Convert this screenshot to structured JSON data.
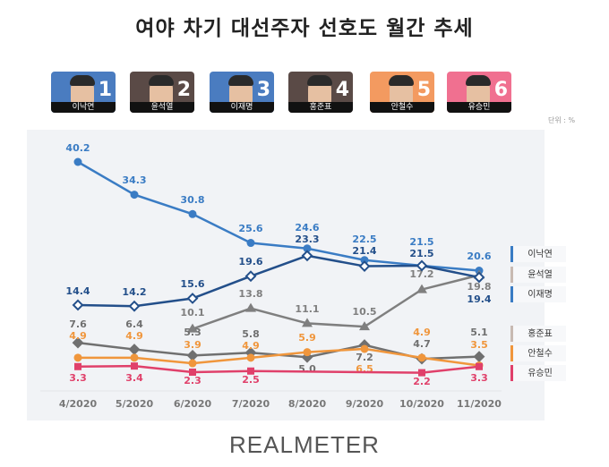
{
  "title": "여야 차기 대선주자 선호도 월간 추세",
  "unit": "단위 : %",
  "footer": "REALMETER",
  "candidates": [
    {
      "num": "1",
      "name": "이낙연",
      "bg": "#4a7cc0"
    },
    {
      "num": "2",
      "name": "윤석열",
      "bg": "#5a4a46"
    },
    {
      "num": "3",
      "name": "이재명",
      "bg": "#4a7cc0"
    },
    {
      "num": "4",
      "name": "홍준표",
      "bg": "#5a4a46"
    },
    {
      "num": "5",
      "name": "안철수",
      "bg": "#f39a60"
    },
    {
      "num": "6",
      "name": "유승민",
      "bg": "#f07090"
    }
  ],
  "chart_data": {
    "type": "line",
    "categories": [
      "4/2020",
      "5/2020",
      "6/2020",
      "7/2020",
      "8/2020",
      "9/2020",
      "10/2020",
      "11/2020"
    ],
    "series": [
      {
        "name": "이낙연",
        "color": "#3a7cc4",
        "legend_color": "#3a7cc4",
        "marker": "circle",
        "values": [
          40.2,
          34.3,
          30.8,
          25.6,
          24.6,
          22.5,
          21.5,
          20.6
        ]
      },
      {
        "name": "윤석열",
        "color": "#7f7f7f",
        "legend_color": "#c8bab2",
        "marker": "triangle",
        "values": [
          null,
          null,
          10.1,
          13.8,
          11.1,
          10.5,
          17.2,
          19.8
        ]
      },
      {
        "name": "이재명",
        "color": "#234f8a",
        "legend_color": "#3a7cc4",
        "marker": "hollow-diamond",
        "values": [
          14.4,
          14.2,
          15.6,
          19.6,
          23.3,
          21.4,
          21.5,
          19.4
        ]
      },
      {
        "name": "홍준표",
        "color": "#707070",
        "legend_color": "#c8bab2",
        "marker": "diamond",
        "values": [
          7.6,
          6.4,
          5.3,
          5.8,
          5.0,
          7.2,
          4.7,
          5.1
        ]
      },
      {
        "name": "안철수",
        "color": "#f0963c",
        "legend_color": "#f0963c",
        "marker": "circle",
        "values": [
          4.9,
          4.9,
          3.9,
          4.9,
          5.9,
          6.5,
          4.9,
          3.5
        ]
      },
      {
        "name": "유승민",
        "color": "#e0406a",
        "legend_color": "#e0406a",
        "marker": "square",
        "values": [
          3.3,
          3.4,
          2.3,
          2.5,
          null,
          null,
          2.2,
          3.3
        ]
      }
    ],
    "grid": false,
    "legend": "right"
  }
}
